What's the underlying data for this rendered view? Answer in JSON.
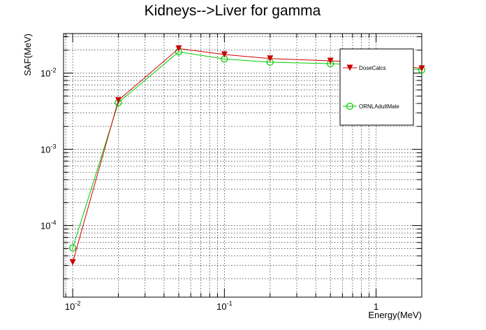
{
  "chart_data": {
    "type": "line",
    "title": "Kidneys-->Liver for gamma",
    "xlabel": "Energy(MeV)",
    "ylabel": "SAF(MeV)",
    "x_scale": "log",
    "y_scale": "log",
    "xlim": [
      0.0087,
      2.0
    ],
    "ylim": [
      1.15e-05,
      0.033
    ],
    "grid": true,
    "legend_position": "top-right",
    "x_ticks": [
      {
        "base": "10",
        "exp": "-2",
        "value": 0.01
      },
      {
        "base": "10",
        "exp": "-1",
        "value": 0.1
      },
      {
        "base": "1",
        "exp": "",
        "value": 1
      }
    ],
    "y_ticks": [
      {
        "base": "10",
        "exp": "-4",
        "value": 0.0001
      },
      {
        "base": "10",
        "exp": "-3",
        "value": 0.001
      },
      {
        "base": "10",
        "exp": "-2",
        "value": 0.01
      }
    ],
    "x": [
      0.01,
      0.02,
      0.05,
      0.1,
      0.2,
      0.5,
      1,
      2
    ],
    "series": [
      {
        "name": "DoseCalcs",
        "color": "#cc0000",
        "marker": "triangle-down",
        "values": [
          3.3e-05,
          0.0044,
          0.021,
          0.0175,
          0.0155,
          0.0145,
          0.0135,
          0.0115
        ]
      },
      {
        "name": "ORNLAdultMale",
        "color": "#00cc00",
        "marker": "open-circle",
        "values": [
          5.1e-05,
          0.0041,
          0.019,
          0.0153,
          0.0139,
          0.0133,
          0.0125,
          0.011
        ]
      }
    ]
  }
}
